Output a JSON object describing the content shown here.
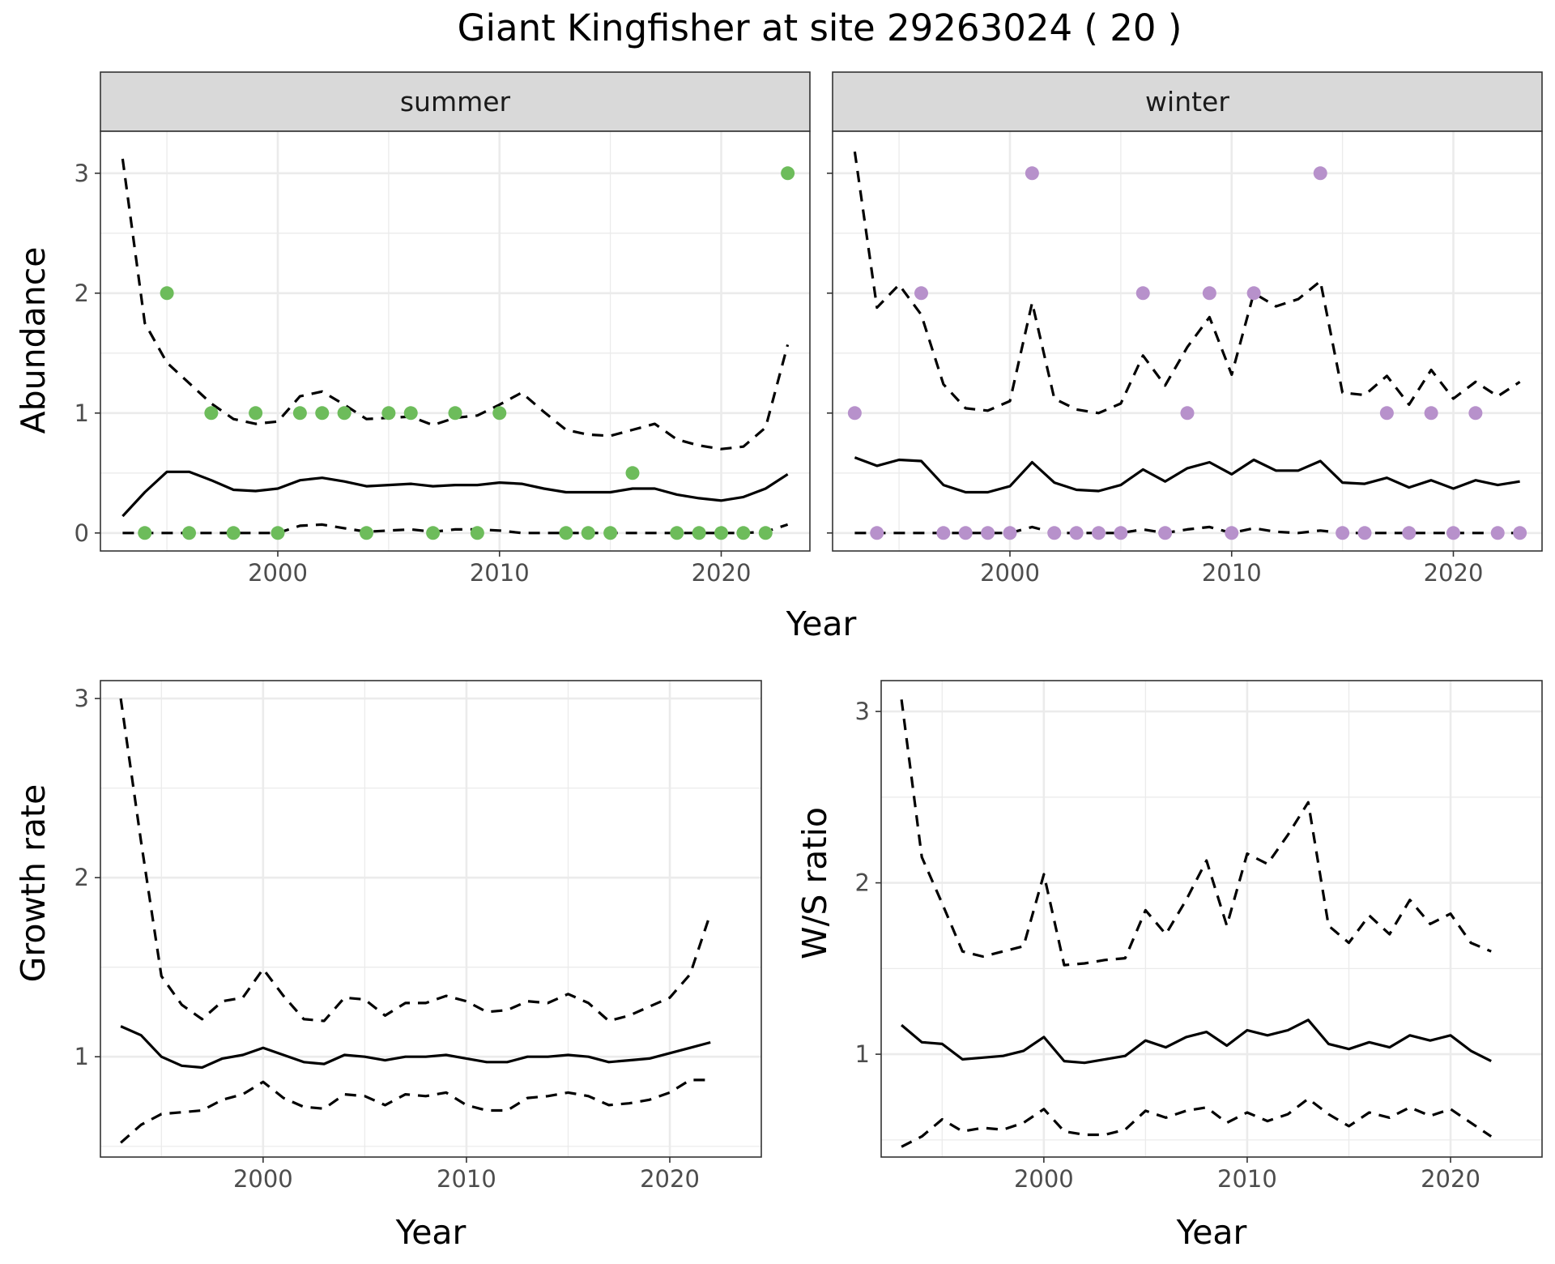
{
  "figure": {
    "title": "Giant Kingfisher at site 29263024 ( 20 )"
  },
  "colors": {
    "summer_points": "#6dbc5b",
    "winter_points": "#b791cb",
    "lines": "#000000",
    "strip": "#d9d9d9",
    "grid": "#ebebeb"
  },
  "chart_data": [
    {
      "type": "line",
      "facet": "summer",
      "xlabel": "Year",
      "ylabel": "Abundance",
      "xlim": [
        1992,
        2024
      ],
      "ylim": [
        -0.15,
        3.35
      ],
      "x_ticks": [
        2000,
        2010,
        2020
      ],
      "y_ticks": [
        0,
        1,
        2,
        3
      ],
      "grid": true,
      "points": {
        "x": [
          1994,
          1995,
          1996,
          1997,
          1998,
          1999,
          2000,
          2001,
          2002,
          2003,
          2004,
          2005,
          2006,
          2007,
          2008,
          2009,
          2010,
          2013,
          2014,
          2015,
          2016,
          2018,
          2019,
          2020,
          2021,
          2022,
          2023
        ],
        "y": [
          0,
          2,
          0,
          1,
          0,
          1,
          0,
          1,
          1,
          1,
          0,
          1,
          1,
          0,
          1,
          0,
          1,
          0,
          0,
          0,
          0.5,
          0,
          0,
          0,
          0,
          0,
          3
        ]
      },
      "series": [
        {
          "style": "solid",
          "x": [
            1993,
            1994,
            1995,
            1996,
            1997,
            1998,
            1999,
            2000,
            2001,
            2002,
            2003,
            2004,
            2005,
            2006,
            2007,
            2008,
            2009,
            2010,
            2011,
            2012,
            2013,
            2014,
            2015,
            2016,
            2017,
            2018,
            2019,
            2020,
            2021,
            2022,
            2023
          ],
          "values": [
            0.14,
            0.34,
            0.51,
            0.51,
            0.44,
            0.36,
            0.35,
            0.37,
            0.44,
            0.46,
            0.43,
            0.39,
            0.4,
            0.41,
            0.39,
            0.4,
            0.4,
            0.42,
            0.41,
            0.37,
            0.34,
            0.34,
            0.34,
            0.37,
            0.37,
            0.32,
            0.29,
            0.27,
            0.3,
            0.37,
            0.49
          ]
        },
        {
          "style": "dashed",
          "x": [
            1993,
            1994,
            1995,
            1996,
            1997,
            1998,
            1999,
            2000,
            2001,
            2002,
            2003,
            2004,
            2005,
            2006,
            2007,
            2008,
            2009,
            2010,
            2011,
            2012,
            2013,
            2014,
            2015,
            2016,
            2017,
            2018,
            2019,
            2020,
            2021,
            2022,
            2023
          ],
          "values": [
            3.12,
            1.75,
            1.42,
            1.25,
            1.08,
            0.95,
            0.91,
            0.93,
            1.14,
            1.18,
            1.07,
            0.95,
            0.96,
            0.97,
            0.9,
            0.96,
            0.98,
            1.07,
            1.17,
            1.01,
            0.86,
            0.82,
            0.81,
            0.86,
            0.91,
            0.78,
            0.73,
            0.7,
            0.72,
            0.88,
            1.57
          ]
        },
        {
          "style": "dashed",
          "x": [
            1993,
            1994,
            1995,
            1996,
            1997,
            1998,
            1999,
            2000,
            2001,
            2002,
            2003,
            2004,
            2005,
            2006,
            2007,
            2008,
            2009,
            2010,
            2011,
            2012,
            2013,
            2014,
            2015,
            2016,
            2017,
            2018,
            2019,
            2020,
            2021,
            2022,
            2023
          ],
          "values": [
            0,
            0,
            0,
            0,
            0,
            0,
            0,
            0,
            0.06,
            0.07,
            0.04,
            0.01,
            0.02,
            0.03,
            0.01,
            0.03,
            0.03,
            0.02,
            0,
            0,
            0,
            0,
            0,
            0,
            0,
            0,
            0,
            0,
            0,
            0.01,
            0.07
          ]
        }
      ]
    },
    {
      "type": "line",
      "facet": "winter",
      "xlabel": "Year",
      "ylabel": "Abundance",
      "xlim": [
        1992,
        2024
      ],
      "ylim": [
        -0.15,
        3.35
      ],
      "x_ticks": [
        2000,
        2010,
        2020
      ],
      "y_ticks": [
        0,
        1,
        2,
        3
      ],
      "grid": true,
      "points": {
        "x": [
          1993,
          1994,
          1996,
          1997,
          1998,
          1999,
          2000,
          2001,
          2002,
          2003,
          2004,
          2005,
          2006,
          2007,
          2008,
          2009,
          2010,
          2011,
          2014,
          2015,
          2016,
          2017,
          2018,
          2019,
          2020,
          2021,
          2022,
          2023
        ],
        "y": [
          1,
          0,
          2,
          0,
          0,
          0,
          0,
          3,
          0,
          0,
          0,
          0,
          2,
          0,
          1,
          2,
          0,
          2,
          3,
          0,
          0,
          1,
          0,
          1,
          0,
          1,
          0,
          0
        ]
      },
      "series": [
        {
          "style": "solid",
          "x": [
            1993,
            1994,
            1995,
            1996,
            1997,
            1998,
            1999,
            2000,
            2001,
            2002,
            2003,
            2004,
            2005,
            2006,
            2007,
            2008,
            2009,
            2010,
            2011,
            2012,
            2013,
            2014,
            2015,
            2016,
            2017,
            2018,
            2019,
            2020,
            2021,
            2022,
            2023
          ],
          "values": [
            0.63,
            0.56,
            0.61,
            0.6,
            0.4,
            0.34,
            0.34,
            0.39,
            0.59,
            0.42,
            0.36,
            0.35,
            0.4,
            0.53,
            0.43,
            0.54,
            0.59,
            0.49,
            0.61,
            0.52,
            0.52,
            0.6,
            0.42,
            0.41,
            0.46,
            0.38,
            0.44,
            0.37,
            0.44,
            0.4,
            0.43
          ]
        },
        {
          "style": "dashed",
          "x": [
            1993,
            1994,
            1995,
            1996,
            1997,
            1998,
            1999,
            2000,
            2001,
            2002,
            2003,
            2004,
            2005,
            2006,
            2007,
            2008,
            2009,
            2010,
            2011,
            2012,
            2013,
            2014,
            2015,
            2016,
            2017,
            2018,
            2019,
            2020,
            2021,
            2022,
            2023
          ],
          "values": [
            3.18,
            1.88,
            2.07,
            1.82,
            1.24,
            1.04,
            1.02,
            1.1,
            1.92,
            1.12,
            1.03,
            1,
            1.08,
            1.48,
            1.23,
            1.55,
            1.8,
            1.32,
            2,
            1.89,
            1.95,
            2.1,
            1.17,
            1.15,
            1.31,
            1.07,
            1.36,
            1.12,
            1.26,
            1.14,
            1.26
          ]
        },
        {
          "style": "dashed",
          "x": [
            1993,
            1994,
            1995,
            1996,
            1997,
            1998,
            1999,
            2000,
            2001,
            2002,
            2003,
            2004,
            2005,
            2006,
            2007,
            2008,
            2009,
            2010,
            2011,
            2012,
            2013,
            2014,
            2015,
            2016,
            2017,
            2018,
            2019,
            2020,
            2021,
            2022,
            2023
          ],
          "values": [
            0,
            0,
            0,
            0,
            0,
            0,
            0,
            0,
            0.05,
            0,
            0,
            0,
            0,
            0.03,
            0,
            0.03,
            0.05,
            0,
            0.04,
            0.01,
            0,
            0.02,
            0,
            0,
            0,
            0,
            0,
            0,
            0,
            0,
            0
          ]
        }
      ]
    },
    {
      "type": "line",
      "panel": "growth",
      "xlabel": "Year",
      "ylabel": "Growth rate",
      "xlim": [
        1992,
        2024.5
      ],
      "ylim": [
        0.44,
        3.1
      ],
      "x_ticks": [
        2000,
        2010,
        2020
      ],
      "y_ticks": [
        1,
        2,
        3
      ],
      "grid": true,
      "series": [
        {
          "style": "solid",
          "x": [
            1993,
            1994,
            1995,
            1996,
            1997,
            1998,
            1999,
            2000,
            2001,
            2002,
            2003,
            2004,
            2005,
            2006,
            2007,
            2008,
            2009,
            2010,
            2011,
            2012,
            2013,
            2014,
            2015,
            2016,
            2017,
            2018,
            2019,
            2020,
            2021,
            2022
          ],
          "values": [
            1.17,
            1.12,
            1,
            0.95,
            0.94,
            0.99,
            1.01,
            1.05,
            1.01,
            0.97,
            0.96,
            1.01,
            1,
            0.98,
            1,
            1,
            1.01,
            0.99,
            0.97,
            0.97,
            1,
            1,
            1.01,
            1,
            0.97,
            0.98,
            0.99,
            1.02,
            1.05,
            1.08
          ]
        },
        {
          "style": "dashed",
          "x": [
            1993,
            1994,
            1995,
            1996,
            1997,
            1998,
            1999,
            2000,
            2001,
            2002,
            2003,
            2004,
            2005,
            2006,
            2007,
            2008,
            2009,
            2010,
            2011,
            2012,
            2013,
            2014,
            2015,
            2016,
            2017,
            2018,
            2019,
            2020,
            2021,
            2022
          ],
          "values": [
            3,
            2.2,
            1.45,
            1.29,
            1.21,
            1.31,
            1.33,
            1.49,
            1.34,
            1.21,
            1.2,
            1.33,
            1.32,
            1.23,
            1.3,
            1.3,
            1.34,
            1.31,
            1.25,
            1.26,
            1.31,
            1.3,
            1.35,
            1.3,
            1.2,
            1.23,
            1.28,
            1.33,
            1.46,
            1.8
          ]
        },
        {
          "style": "dashed",
          "x": [
            1993,
            1994,
            1995,
            1996,
            1997,
            1998,
            1999,
            2000,
            2001,
            2002,
            2003,
            2004,
            2005,
            2006,
            2007,
            2008,
            2009,
            2010,
            2011,
            2012,
            2013,
            2014,
            2015,
            2016,
            2017,
            2018,
            2019,
            2020,
            2021,
            2022
          ],
          "values": [
            0.52,
            0.62,
            0.68,
            0.69,
            0.7,
            0.76,
            0.79,
            0.86,
            0.77,
            0.72,
            0.71,
            0.79,
            0.78,
            0.73,
            0.79,
            0.78,
            0.8,
            0.73,
            0.7,
            0.7,
            0.77,
            0.78,
            0.8,
            0.78,
            0.73,
            0.74,
            0.76,
            0.8,
            0.87,
            0.87
          ]
        }
      ]
    },
    {
      "type": "line",
      "panel": "ws_ratio",
      "xlabel": "Year",
      "ylabel": "W/S ratio",
      "xlim": [
        1992,
        2024.5
      ],
      "ylim": [
        0.4,
        3.18
      ],
      "x_ticks": [
        2000,
        2010,
        2020
      ],
      "y_ticks": [
        1,
        2,
        3
      ],
      "grid": true,
      "series": [
        {
          "style": "solid",
          "x": [
            1993,
            1994,
            1995,
            1996,
            1997,
            1998,
            1999,
            2000,
            2001,
            2002,
            2003,
            2004,
            2005,
            2006,
            2007,
            2008,
            2009,
            2010,
            2011,
            2012,
            2013,
            2014,
            2015,
            2016,
            2017,
            2018,
            2019,
            2020,
            2021,
            2022
          ],
          "values": [
            1.17,
            1.07,
            1.06,
            0.97,
            0.98,
            0.99,
            1.02,
            1.1,
            0.96,
            0.95,
            0.97,
            0.99,
            1.08,
            1.04,
            1.1,
            1.13,
            1.05,
            1.14,
            1.11,
            1.14,
            1.2,
            1.06,
            1.03,
            1.07,
            1.04,
            1.11,
            1.08,
            1.11,
            1.02,
            0.96
          ]
        },
        {
          "style": "dashed",
          "x": [
            1993,
            1994,
            1995,
            1996,
            1997,
            1998,
            1999,
            2000,
            2001,
            2002,
            2003,
            2004,
            2005,
            2006,
            2007,
            2008,
            2009,
            2010,
            2011,
            2012,
            2013,
            2014,
            2015,
            2016,
            2017,
            2018,
            2019,
            2020,
            2021,
            2022
          ],
          "values": [
            3.07,
            2.15,
            1.88,
            1.6,
            1.57,
            1.6,
            1.63,
            2.05,
            1.52,
            1.53,
            1.55,
            1.56,
            1.84,
            1.7,
            1.9,
            2.13,
            1.75,
            2.17,
            2.11,
            2.28,
            2.47,
            1.75,
            1.65,
            1.81,
            1.7,
            1.9,
            1.76,
            1.82,
            1.65,
            1.6
          ]
        },
        {
          "style": "dashed",
          "x": [
            1993,
            1994,
            1995,
            1996,
            1997,
            1998,
            1999,
            2000,
            2001,
            2002,
            2003,
            2004,
            2005,
            2006,
            2007,
            2008,
            2009,
            2010,
            2011,
            2012,
            2013,
            2014,
            2015,
            2016,
            2017,
            2018,
            2019,
            2020,
            2021,
            2022
          ],
          "values": [
            0.46,
            0.52,
            0.62,
            0.55,
            0.57,
            0.56,
            0.6,
            0.68,
            0.55,
            0.53,
            0.53,
            0.56,
            0.67,
            0.63,
            0.67,
            0.69,
            0.6,
            0.66,
            0.61,
            0.65,
            0.74,
            0.65,
            0.58,
            0.66,
            0.63,
            0.69,
            0.64,
            0.68,
            0.6,
            0.52
          ]
        }
      ]
    }
  ],
  "axis_labels": {
    "top_x": "Year",
    "top_y": "Abundance",
    "growth_x": "Year",
    "growth_y": "Growth rate",
    "ratio_x": "Year",
    "ratio_y": "W/S ratio"
  },
  "strips": {
    "summer": "summer",
    "winter": "winter"
  }
}
